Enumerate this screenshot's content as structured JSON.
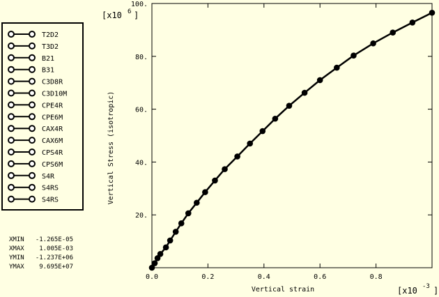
{
  "chart_data": {
    "type": "line",
    "xlabel": "Vertical strain",
    "ylabel": "Vertical Stress (isotropic)",
    "x_multiplier": "[x10",
    "x_multiplier_exp": "-3",
    "y_multiplier": "[x10",
    "y_multiplier_exp": "6",
    "xlim": [
      0.0,
      1.0
    ],
    "ylim": [
      0.0,
      100.0
    ],
    "xticks": [
      0.0,
      0.2,
      0.4,
      0.6,
      0.8
    ],
    "xtick_labels": [
      "0.0",
      "0.2",
      "0.4",
      "0.6",
      "0.8"
    ],
    "yticks": [
      20,
      40,
      60,
      80,
      100
    ],
    "ytick_labels": [
      "20.",
      "40.",
      "60.",
      "80.",
      "100."
    ],
    "grid": false,
    "legend_position": "left",
    "legend": [
      "T2D2",
      "T3D2",
      "B21",
      "B31",
      "C3D8R",
      "C3D10M",
      "CPE4R",
      "CPE6M",
      "CAX4R",
      "CAX6M",
      "CPS4R",
      "CPS6M",
      "S4R",
      "S4RS",
      "S4RS"
    ],
    "ranges": [
      {
        "label": "XMIN",
        "value": "-1.265E-05"
      },
      {
        "label": "XMAX",
        "value": "1.005E-03"
      },
      {
        "label": "YMIN",
        "value": "-1.237E+06"
      },
      {
        "label": "YMAX",
        "value": "9.695E+07"
      }
    ],
    "series_color": "#000000",
    "x": [
      0.0,
      0.01,
      0.02,
      0.03,
      0.05,
      0.065,
      0.085,
      0.105,
      0.13,
      0.16,
      0.19,
      0.225,
      0.26,
      0.305,
      0.35,
      0.395,
      0.44,
      0.49,
      0.545,
      0.6,
      0.66,
      0.72,
      0.79,
      0.86,
      0.93,
      1.0
    ],
    "y": [
      0.0,
      1.7,
      3.6,
      5.2,
      7.7,
      10.3,
      13.6,
      16.8,
      20.6,
      24.6,
      28.6,
      33.0,
      37.3,
      42.1,
      47.0,
      51.7,
      56.4,
      61.3,
      66.2,
      71.0,
      75.7,
      80.3,
      84.9,
      89.0,
      92.8,
      96.5
    ]
  }
}
